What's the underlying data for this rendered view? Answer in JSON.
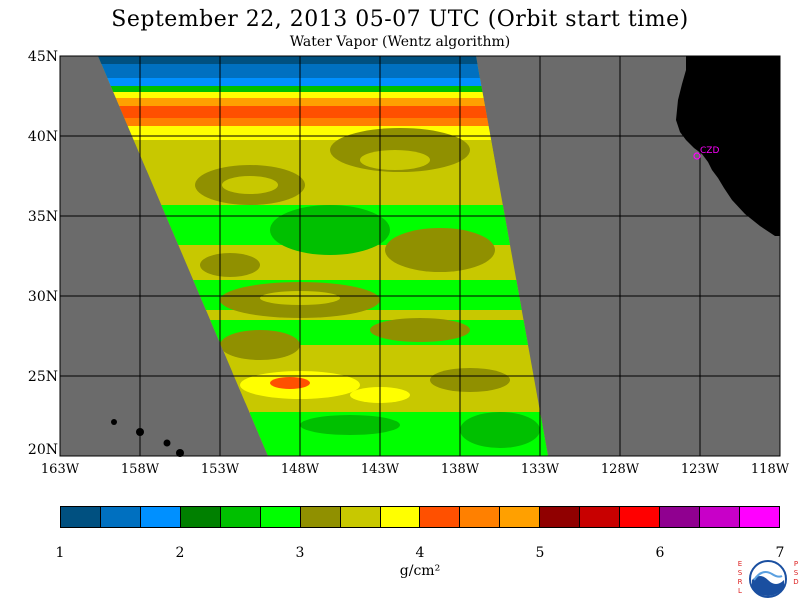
{
  "header": {
    "title": "September 22, 2013  05-07 UTC  (Orbit start time)",
    "subtitle": "Water Vapor (Wentz algorithm)"
  },
  "map": {
    "lat_labels": [
      "45N",
      "40N",
      "35N",
      "30N",
      "25N",
      "20N"
    ],
    "lon_labels": [
      "163W",
      "158W",
      "153W",
      "148W",
      "143W",
      "138W",
      "133W",
      "128W",
      "123W",
      "118W"
    ],
    "city_label": "CZD",
    "colors": {
      "land": "#000000",
      "no_data": "#6b6b6b",
      "grid": "#000000",
      "station": "#ff00ff"
    }
  },
  "colorbar": {
    "colors": [
      "#005080",
      "#0070c0",
      "#0090ff",
      "#008000",
      "#00c000",
      "#00ff00",
      "#909000",
      "#c8c800",
      "#ffff00",
      "#ff5000",
      "#ff8000",
      "#ffa000",
      "#900000",
      "#c80000",
      "#ff0000",
      "#900090",
      "#c800c8",
      "#ff00ff"
    ],
    "ticks": [
      "1",
      "2",
      "3",
      "4",
      "5",
      "6",
      "7"
    ],
    "units": "g/cm²"
  },
  "logo": {
    "left_letters": [
      "E",
      "S",
      "R",
      "L"
    ],
    "right_letters": [
      "P",
      "S",
      "D"
    ],
    "center_text": "NOAA"
  }
}
